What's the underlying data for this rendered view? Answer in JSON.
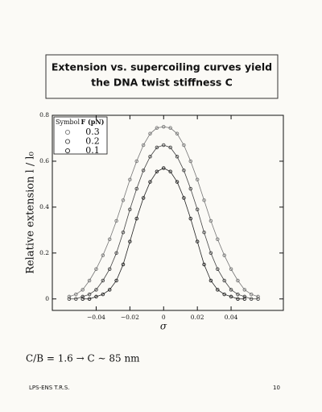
{
  "header": {
    "title_lines": [
      "Extension vs. supercoiling curves yield",
      "the DNA twist stiffness C"
    ]
  },
  "chart_data": {
    "type": "scatter",
    "xlabel": "σ",
    "ylabel": "Relative extension l / l₀",
    "legend_headers": [
      "Symbol",
      "F (pN)"
    ],
    "x": [
      -0.056,
      -0.052,
      -0.048,
      -0.044,
      -0.04,
      -0.036,
      -0.032,
      -0.028,
      -0.024,
      -0.02,
      -0.016,
      -0.012,
      -0.008,
      -0.004,
      0,
      0.004,
      0.008,
      0.012,
      0.016,
      0.02,
      0.024,
      0.028,
      0.032,
      0.036,
      0.04,
      0.044,
      0.048,
      0.052,
      0.056
    ],
    "series": [
      {
        "name": "0.3",
        "color": "#777777",
        "values": [
          0.01,
          0.02,
          0.04,
          0.08,
          0.13,
          0.19,
          0.26,
          0.34,
          0.43,
          0.52,
          0.6,
          0.67,
          0.72,
          0.745,
          0.75,
          0.745,
          0.72,
          0.67,
          0.6,
          0.52,
          0.43,
          0.34,
          0.26,
          0.19,
          0.13,
          0.08,
          0.04,
          0.02,
          0.01
        ]
      },
      {
        "name": "0.2",
        "color": "#444444",
        "values": [
          0,
          0,
          0.01,
          0.02,
          0.04,
          0.08,
          0.13,
          0.2,
          0.29,
          0.39,
          0.48,
          0.56,
          0.62,
          0.66,
          0.67,
          0.66,
          0.62,
          0.56,
          0.48,
          0.39,
          0.29,
          0.2,
          0.13,
          0.08,
          0.04,
          0.02,
          0.01,
          0,
          0
        ]
      },
      {
        "name": "0.1",
        "color": "#222222",
        "values": [
          null,
          null,
          0,
          0,
          0.01,
          0.02,
          0.04,
          0.08,
          0.15,
          0.25,
          0.35,
          0.44,
          0.51,
          0.555,
          0.57,
          0.555,
          0.51,
          0.44,
          0.35,
          0.25,
          0.15,
          0.08,
          0.04,
          0.02,
          0.01,
          0,
          0,
          null,
          null
        ]
      }
    ],
    "xlim": [
      -0.066,
      0.071
    ],
    "ylim": [
      -0.05,
      0.8
    ],
    "xticks": [
      {
        "value": -0.04,
        "label": "−0.04"
      },
      {
        "value": -0.02,
        "label": "−0.02"
      },
      0,
      0.02,
      0.04
    ],
    "yticks": [
      0,
      0.2,
      0.4,
      0.6,
      0.8
    ]
  },
  "formula": "C/B = 1.6 → C ∼ 85 nm",
  "footer": {
    "left": "LPS-ENS T.R.S.",
    "page": "10"
  }
}
